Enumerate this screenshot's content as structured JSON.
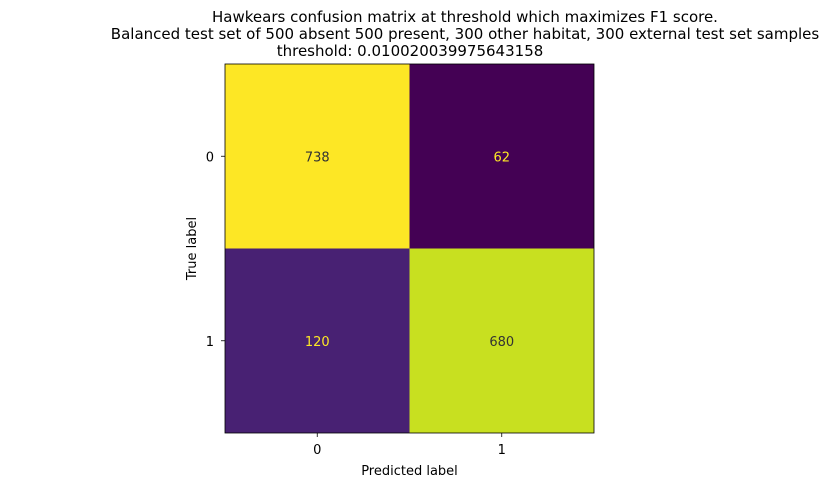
{
  "chart_data": {
    "type": "heatmap",
    "title": [
      "Hawkears confusion matrix at threshold which maximizes F1 score.",
      "Balanced test set of 500 absent 500 present, 300 other habitat, 300 external test set samples",
      "threshold: 0.010020039975643158"
    ],
    "xlabel": "Predicted label",
    "ylabel": "True label",
    "x_categories": [
      "0",
      "1"
    ],
    "y_categories": [
      "0",
      "1"
    ],
    "values": [
      [
        738,
        62
      ],
      [
        120,
        680
      ]
    ],
    "colormap": "viridis",
    "cell_colors": [
      [
        "#fde725",
        "#440154"
      ],
      [
        "#482173",
        "#c8e020"
      ]
    ],
    "cell_label_colors": [
      [
        "#333333",
        "#fde725"
      ],
      [
        "#fde725",
        "#333333"
      ]
    ]
  }
}
